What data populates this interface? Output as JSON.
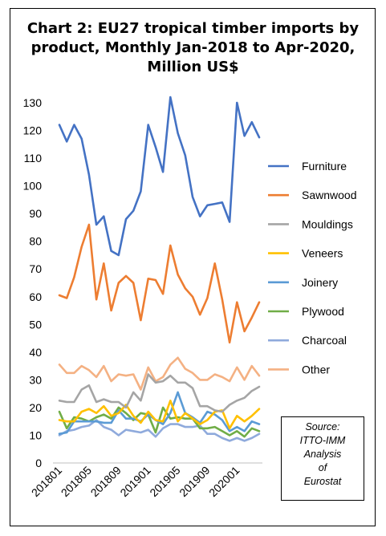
{
  "title": {
    "line1": "Chart 2: EU27 tropical timber imports by",
    "line2": "product, Monthly Jan-2018 to Apr-2020,",
    "line3": "Million US$"
  },
  "source": {
    "line1": "Source:",
    "line2": "ITTO-IMM",
    "line3": "Analysis",
    "line4": "of",
    "line5": "Eurostat"
  },
  "chart_data": {
    "type": "line",
    "title": "Chart 2: EU27 tropical timber imports by product, Monthly Jan-2018 to Apr-2020, Million US$",
    "xlabel": "",
    "ylabel": "",
    "ylim": [
      0,
      130
    ],
    "yticks": [
      0,
      10,
      20,
      30,
      40,
      50,
      60,
      70,
      80,
      90,
      100,
      110,
      120,
      130
    ],
    "x_tick_labels": [
      "201801",
      "201805",
      "201809",
      "201901",
      "201905",
      "201909",
      "202001"
    ],
    "x_tick_every": 4,
    "grid": false,
    "legend": "right",
    "x": [
      "201801",
      "201802",
      "201803",
      "201804",
      "201805",
      "201806",
      "201807",
      "201808",
      "201809",
      "201810",
      "201811",
      "201812",
      "201901",
      "201902",
      "201903",
      "201904",
      "201905",
      "201906",
      "201907",
      "201908",
      "201909",
      "201910",
      "201911",
      "201912",
      "202001",
      "202002",
      "202003",
      "202004"
    ],
    "series": [
      {
        "name": "Furniture",
        "color": "#4472c4",
        "values": [
          122,
          116,
          122,
          117,
          104,
          86,
          89,
          76.5,
          75,
          88,
          91,
          98,
          122,
          114,
          105,
          132,
          119,
          111,
          96,
          89,
          93,
          93.5,
          94,
          87,
          130,
          118,
          123,
          117.5
        ]
      },
      {
        "name": "Sawnwood",
        "color": "#ed7d31",
        "values": [
          60.5,
          59.5,
          67,
          78,
          86,
          59,
          72,
          55,
          65,
          67.5,
          65,
          51.5,
          66.5,
          66,
          61,
          78.5,
          68,
          63,
          60,
          53.5,
          59.5,
          72,
          59,
          43.5,
          58,
          47.5,
          52.5,
          58
        ]
      },
      {
        "name": "Mouldings",
        "color": "#a5a5a5",
        "values": [
          22.5,
          22,
          22,
          26.5,
          28,
          22,
          23,
          22,
          22,
          20,
          25.5,
          22.5,
          32,
          29,
          29.5,
          31.5,
          29,
          29,
          27,
          20.5,
          20.5,
          19,
          18.5,
          21,
          22.5,
          23.5,
          26,
          27.5
        ]
      },
      {
        "name": "Veneers",
        "color": "#ffc000",
        "values": [
          15.5,
          15,
          15,
          18.5,
          19.5,
          18,
          20.5,
          17,
          18,
          21,
          17,
          14.5,
          18.5,
          15.5,
          15,
          22.5,
          15,
          18,
          16,
          14,
          15.5,
          18.5,
          19,
          12.5,
          17,
          15,
          17,
          19.5
        ]
      },
      {
        "name": "Joinery",
        "color": "#5b9bd5",
        "values": [
          10.5,
          11,
          15,
          15,
          15,
          15,
          14.5,
          14.5,
          19,
          16,
          16,
          15,
          17.5,
          15.5,
          14,
          18,
          25.5,
          18,
          16.5,
          14.5,
          18.5,
          17.5,
          15.5,
          11.5,
          13,
          11.5,
          15,
          14
        ]
      },
      {
        "name": "Plywood",
        "color": "#70ad47",
        "values": [
          18.5,
          12.5,
          16.5,
          16,
          15,
          16.5,
          17.5,
          16,
          20,
          18,
          15.5,
          18,
          17.5,
          11,
          20,
          16,
          16.5,
          16,
          16,
          12.5,
          12.5,
          13,
          11.5,
          10,
          11.5,
          9.5,
          12.5,
          11.5
        ]
      },
      {
        "name": "Charcoal",
        "color": "#8faadc",
        "values": [
          10,
          11.5,
          12,
          13,
          13.5,
          15.5,
          13,
          12,
          10,
          12,
          11.5,
          11,
          12,
          9.5,
          12.5,
          14,
          14,
          13,
          13,
          13.5,
          10.5,
          10.5,
          9,
          8,
          9,
          8,
          9,
          10.5
        ]
      },
      {
        "name": "Other",
        "color": "#f4b183",
        "values": [
          35.5,
          32.5,
          32.5,
          35,
          33.5,
          31,
          35,
          29.5,
          32,
          31.5,
          32,
          26.5,
          34.5,
          29.5,
          31,
          35.5,
          38,
          34,
          32.5,
          30,
          30,
          32,
          31,
          29.5,
          34.5,
          30,
          35,
          31.5
        ]
      }
    ]
  }
}
